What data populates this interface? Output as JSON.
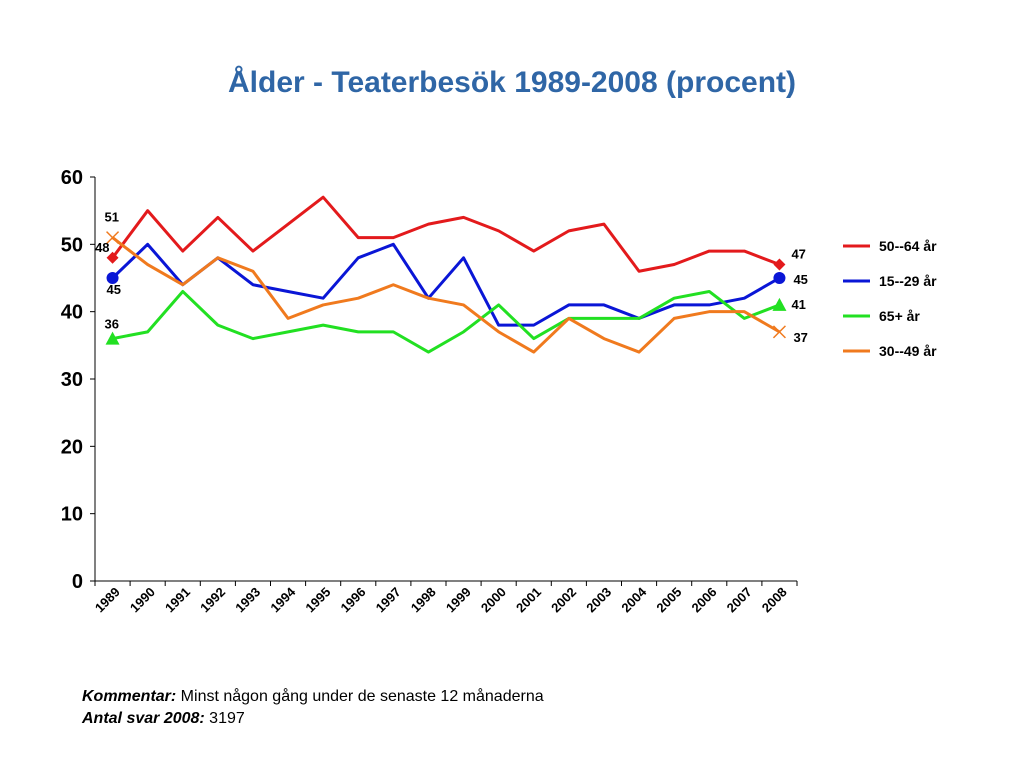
{
  "slide": {
    "title": "Ålder - Teaterbesök 1989-2008 (procent)",
    "comment_label": "Kommentar:",
    "comment_text": " Minst någon gång under de senaste 12 månaderna",
    "answers_label": "Antal svar 2008:",
    "answers_text": " 3197"
  },
  "chart_data": {
    "type": "line",
    "title": "Ålder - Teaterbesök 1989-2008 (procent)",
    "xlabel": "",
    "ylabel": "",
    "ylim": [
      0,
      60
    ],
    "yticks": [
      "0",
      "10",
      "20",
      "30",
      "40",
      "50",
      "60"
    ],
    "categories": [
      "1989",
      "1990",
      "1991",
      "1992",
      "1993",
      "1994",
      "1995",
      "1996",
      "1997",
      "1998",
      "1999",
      "2000",
      "2001",
      "2002",
      "2003",
      "2004",
      "2005",
      "2006",
      "2007",
      "2008"
    ],
    "grid": false,
    "legend_position": "right",
    "series": [
      {
        "name": "50--64 år",
        "color": "#e31a1c",
        "marker": "diamond",
        "values": [
          48,
          55,
          49,
          54,
          49,
          53,
          57,
          51,
          51,
          53,
          54,
          52,
          49,
          52,
          53,
          46,
          47,
          49,
          49,
          47
        ],
        "end_labels": {
          "first": "48",
          "last": "47"
        }
      },
      {
        "name": "15--29 år",
        "color": "#0a16d6",
        "marker": "circle",
        "values": [
          45,
          50,
          44,
          48,
          44,
          43,
          42,
          48,
          50,
          42,
          48,
          38,
          38,
          41,
          41,
          39,
          41,
          41,
          42,
          45
        ],
        "end_labels": {
          "first": "45",
          "last": "45"
        }
      },
      {
        "name": "65+ år",
        "color": "#22e022",
        "marker": "triangle",
        "values": [
          36,
          37,
          43,
          38,
          36,
          37,
          38,
          37,
          37,
          34,
          37,
          41,
          36,
          39,
          39,
          39,
          42,
          43,
          39,
          41
        ],
        "end_labels": {
          "first": "36",
          "last": "41"
        }
      },
      {
        "name": "30--49 år",
        "color": "#f07a1e",
        "marker": "x",
        "values": [
          51,
          47,
          44,
          48,
          46,
          39,
          41,
          42,
          44,
          42,
          41,
          37,
          34,
          39,
          36,
          34,
          39,
          40,
          40,
          37
        ],
        "end_labels": {
          "first": "51",
          "last": "37"
        }
      }
    ]
  }
}
